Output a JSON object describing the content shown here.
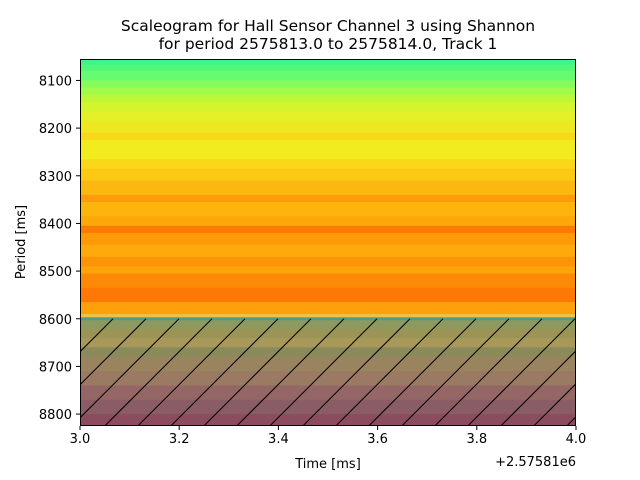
{
  "chart_data": {
    "type": "heatmap",
    "title_line1": "Scaleogram for Hall Sensor Channel 3 using Shannon",
    "title_line2": "for period 2575813.0 to 2575814.0, Track 1",
    "xlabel": "Time [ms]",
    "ylabel": "Period [ms]",
    "x_offset_label": "+2.57581e6",
    "xlim": [
      3.0,
      4.0
    ],
    "ylim": [
      8825,
      8055
    ],
    "x_ticks": [
      3.0,
      3.2,
      3.4,
      3.6,
      3.8,
      4.0
    ],
    "x_tick_labels": [
      "3.0",
      "3.2",
      "3.4",
      "3.6",
      "3.8",
      "4.0"
    ],
    "y_ticks": [
      8100,
      8200,
      8300,
      8400,
      8500,
      8600,
      8700,
      8800
    ],
    "y_tick_labels": [
      "8100",
      "8200",
      "8300",
      "8400",
      "8500",
      "8600",
      "8700",
      "8800"
    ],
    "cone_of_influence_start": 8600,
    "hatch": "diagonal",
    "grid": false,
    "bands": [
      {
        "from": 8055,
        "to": 8067,
        "color": "#3ef58a"
      },
      {
        "from": 8067,
        "to": 8080,
        "color": "#52f87a"
      },
      {
        "from": 8080,
        "to": 8100,
        "color": "#66fb70"
      },
      {
        "from": 8100,
        "to": 8115,
        "color": "#86fb5c"
      },
      {
        "from": 8115,
        "to": 8130,
        "color": "#a2fb48"
      },
      {
        "from": 8130,
        "to": 8145,
        "color": "#bcf73a"
      },
      {
        "from": 8145,
        "to": 8165,
        "color": "#d2f52e"
      },
      {
        "from": 8165,
        "to": 8185,
        "color": "#e4f028"
      },
      {
        "from": 8185,
        "to": 8210,
        "color": "#eee820"
      },
      {
        "from": 8210,
        "to": 8225,
        "color": "#f8d81a"
      },
      {
        "from": 8225,
        "to": 8265,
        "color": "#f2ec1e"
      },
      {
        "from": 8265,
        "to": 8285,
        "color": "#f8d818"
      },
      {
        "from": 8285,
        "to": 8310,
        "color": "#fbc814"
      },
      {
        "from": 8310,
        "to": 8340,
        "color": "#fcb810"
      },
      {
        "from": 8340,
        "to": 8355,
        "color": "#fd9c0a"
      },
      {
        "from": 8355,
        "to": 8385,
        "color": "#fdb40c"
      },
      {
        "from": 8385,
        "to": 8405,
        "color": "#fda80a"
      },
      {
        "from": 8405,
        "to": 8420,
        "color": "#fd7a04"
      },
      {
        "from": 8420,
        "to": 8445,
        "color": "#fd9a08"
      },
      {
        "from": 8445,
        "to": 8470,
        "color": "#fdaa0a"
      },
      {
        "from": 8470,
        "to": 8490,
        "color": "#fd9408"
      },
      {
        "from": 8490,
        "to": 8505,
        "color": "#fda40a"
      },
      {
        "from": 8505,
        "to": 8535,
        "color": "#fd8a06"
      },
      {
        "from": 8535,
        "to": 8565,
        "color": "#fd7804"
      },
      {
        "from": 8565,
        "to": 8590,
        "color": "#fda00a"
      },
      {
        "from": 8590,
        "to": 8597,
        "color": "#f0c040"
      },
      {
        "from": 8597,
        "to": 8603,
        "color": "#4e9a8e"
      },
      {
        "from": 8603,
        "to": 8620,
        "color": "#8a9a60"
      },
      {
        "from": 8620,
        "to": 8640,
        "color": "#9a9456"
      },
      {
        "from": 8640,
        "to": 8660,
        "color": "#a8985a"
      },
      {
        "from": 8660,
        "to": 8680,
        "color": "#8a8a5a"
      },
      {
        "from": 8680,
        "to": 8710,
        "color": "#9a8460"
      },
      {
        "from": 8710,
        "to": 8740,
        "color": "#9a7a62"
      },
      {
        "from": 8740,
        "to": 8770,
        "color": "#946666"
      },
      {
        "from": 8770,
        "to": 8800,
        "color": "#8a5c64"
      },
      {
        "from": 8800,
        "to": 8825,
        "color": "#8c4c60"
      }
    ]
  }
}
